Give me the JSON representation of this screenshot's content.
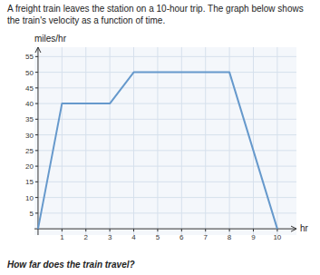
{
  "chart_data": {
    "type": "line",
    "title": "A freight train leaves the station on a 10-hour trip. The graph below shows",
    "subtitle": "the train's velocity as a function of time.",
    "annotations": [
      "How far does the train travel?"
    ],
    "x_label": "hr",
    "y_label": "miles/hr",
    "x": [
      0,
      1,
      3,
      4,
      8,
      10
    ],
    "values": [
      0,
      40,
      40,
      50,
      50,
      0
    ],
    "color": "#6699cc",
    "xlim": [
      -0.15,
      10.8
    ],
    "ylim": [
      -2,
      58
    ],
    "xticks": [
      1,
      2,
      3,
      4,
      5,
      6,
      7,
      8,
      9,
      10
    ],
    "yticks": [
      5,
      10,
      15,
      20,
      25,
      30,
      35,
      40,
      45,
      50,
      55
    ],
    "grid": true
  }
}
